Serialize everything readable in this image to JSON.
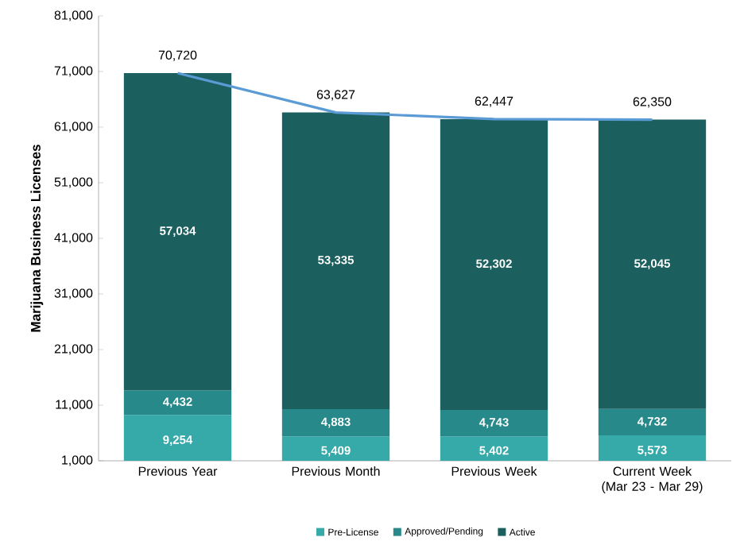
{
  "chart_data": {
    "type": "bar",
    "stacked": true,
    "ylabel": "Marijuana Business Licenses",
    "categories": [
      "Previous Year",
      "Previous Month",
      "Previous Week",
      "Current Week (Mar 23 - Mar 29)"
    ],
    "series": [
      {
        "name": "Pre-License",
        "color": "#36a9a9",
        "values": [
          9254,
          5409,
          5402,
          5573
        ],
        "value_labels": [
          "9,254",
          "5,409",
          "5,402",
          "5,573"
        ]
      },
      {
        "name": "Approved/Pending",
        "color": "#27898a",
        "values": [
          4432,
          4883,
          4743,
          4732
        ],
        "value_labels": [
          "4,432",
          "4,883",
          "4,743",
          "4,732"
        ]
      },
      {
        "name": "Active",
        "color": "#1b5f5e",
        "values": [
          57034,
          53335,
          52302,
          52045
        ],
        "value_labels": [
          "57,034",
          "53,335",
          "52,302",
          "52,045"
        ]
      },
      {
        "type": "line",
        "color": "#5b9bd5",
        "values": [
          70720,
          63627,
          62447,
          62350
        ],
        "value_labels": [
          "70,720",
          "63,627",
          "62,447",
          "62,350"
        ]
      }
    ],
    "ylim": [
      1000,
      81000
    ],
    "yticks": [
      {
        "value": 1000,
        "label": "1,000"
      },
      {
        "value": 11000,
        "label": "11,000"
      },
      {
        "value": 21000,
        "label": "21,000"
      },
      {
        "value": 31000,
        "label": "31,000"
      },
      {
        "value": 41000,
        "label": "41,000"
      },
      {
        "value": 51000,
        "label": "51,000"
      },
      {
        "value": 61000,
        "label": "61,000"
      },
      {
        "value": 71000,
        "label": "71,000"
      },
      {
        "value": 81000,
        "label": "81,000"
      }
    ],
    "legend": "bottom",
    "marker": "none",
    "line_style": "solid"
  }
}
